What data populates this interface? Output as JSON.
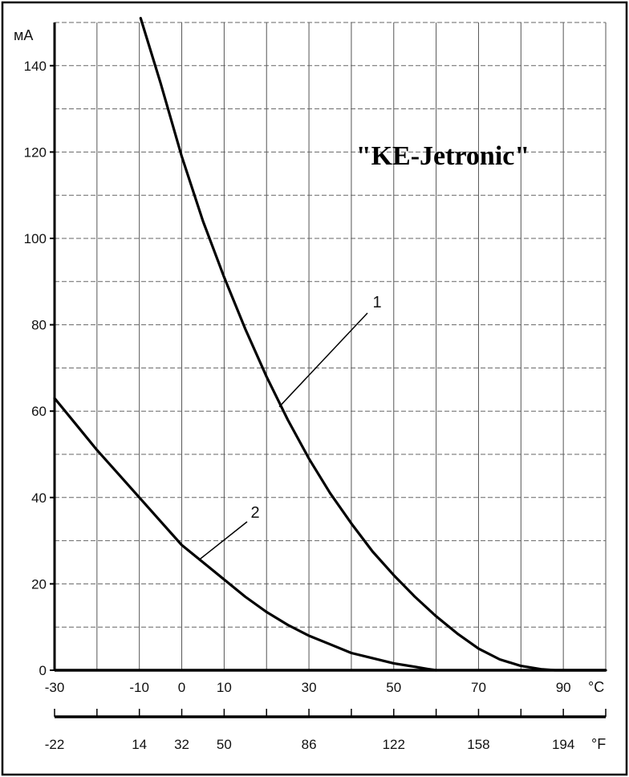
{
  "chart_data": {
    "type": "line",
    "title": "\"KE-Jetronic\"",
    "ylabel": "мА",
    "ylim": [
      0,
      150
    ],
    "yticks": [
      0,
      20,
      40,
      60,
      80,
      100,
      120,
      140
    ],
    "xlim": [
      -30,
      100
    ],
    "x_unit_celsius": "°C",
    "x_unit_fahrenheit": "°F",
    "xticks_celsius": [
      {
        "value": -30,
        "label": "-30"
      },
      {
        "value": -10,
        "label": "-10"
      },
      {
        "value": 0,
        "label": "0"
      },
      {
        "value": 10,
        "label": "10"
      },
      {
        "value": 30,
        "label": "30"
      },
      {
        "value": 50,
        "label": "50"
      },
      {
        "value": 70,
        "label": "70"
      },
      {
        "value": 90,
        "label": "90"
      }
    ],
    "xticks_fahrenheit": [
      {
        "value": -30,
        "label": "-22"
      },
      {
        "value": -10,
        "label": "14"
      },
      {
        "value": 0,
        "label": "32"
      },
      {
        "value": 10,
        "label": "50"
      },
      {
        "value": 30,
        "label": "86"
      },
      {
        "value": 50,
        "label": "122"
      },
      {
        "value": 70,
        "label": "158"
      },
      {
        "value": 90,
        "label": "194"
      }
    ],
    "grid": true,
    "series": [
      {
        "name": "1",
        "x": [
          -9.7,
          -5,
          0,
          5,
          10,
          15,
          20,
          25,
          30,
          35,
          40,
          45,
          50,
          55,
          60,
          65,
          70,
          75,
          80,
          85,
          88,
          100
        ],
        "y": [
          151,
          136,
          119,
          104,
          91,
          79,
          68,
          58,
          49,
          41,
          34,
          27.5,
          22,
          17,
          12.5,
          8.5,
          5,
          2.5,
          1,
          0.2,
          0,
          0
        ]
      },
      {
        "name": "2",
        "x": [
          -30,
          -25,
          -20,
          -15,
          -10,
          -5,
          0,
          5,
          10,
          15,
          20,
          25,
          30,
          35,
          40,
          45,
          50,
          55,
          58,
          60
        ],
        "y": [
          63,
          57,
          51,
          45.5,
          40,
          34.5,
          29,
          25,
          21,
          17,
          13.5,
          10.5,
          8,
          6,
          4,
          2.8,
          1.6,
          0.8,
          0.3,
          0
        ]
      }
    ]
  }
}
